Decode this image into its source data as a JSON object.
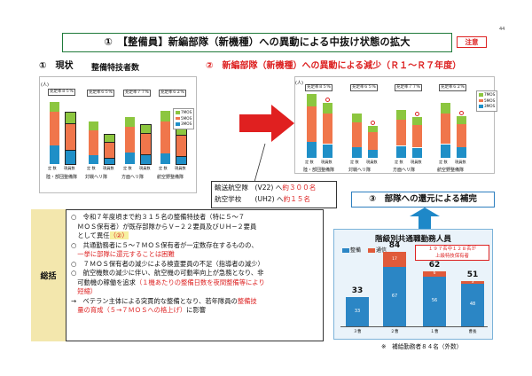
{
  "page_number": "44",
  "title": "①　【整備員】新編部隊（新機種）への異動による中抜け状態の拡大",
  "caution": "注意",
  "section1": {
    "title": "①　現状",
    "subtitle": "整備特技者数",
    "y_unit": "(人)",
    "charts": [
      {
        "name": "陸・部団整備隊",
        "rate": "充足率８５%"
      },
      {
        "name": "対戦ヘリ隊",
        "rate": "充足率６５%"
      },
      {
        "name": "方面ヘリ隊",
        "rate": "充足率７７%"
      },
      {
        "name": "航空野整備隊",
        "rate": "充足率６２%"
      }
    ],
    "bar_labels": [
      "定 数",
      "現員数"
    ],
    "legend": [
      "7MOS",
      "5MOS",
      "3MOS"
    ]
  },
  "section2": {
    "title": "②　新編部隊（新機種）への異動による減少（Ｒ１〜Ｒ７年度）",
    "y_unit": "(人)",
    "charts": [
      {
        "name": "陸・部団整備隊",
        "rate": "充足率８５%"
      },
      {
        "name": "対戦ヘリ隊",
        "rate": "充足率６５%"
      },
      {
        "name": "方面ヘリ隊",
        "rate": "充足率７７%"
      },
      {
        "name": "航空野整備隊",
        "rate": "充足率６２%"
      }
    ],
    "legend": [
      "7MOS",
      "5MOS",
      "3MOS"
    ]
  },
  "transport": {
    "line1_prefix": "輸送航空隊　(V22) へ",
    "line1_value": "約３００名",
    "line2_prefix": "航空学校　　(UH2) へ",
    "line2_value": "約１５名"
  },
  "section3": {
    "title": "③　部隊への還元による補完"
  },
  "summary": {
    "label": "総括",
    "lines": [
      {
        "text": "○　令和７年度頃まで約３１５名の整備特技者（特に５〜７",
        "style": ""
      },
      {
        "text": "　ＭＯＳ保有者）が既存部隊からＶ−２２要員及びＵＨ−２要員",
        "style": ""
      },
      {
        "text": "　として異任",
        "style": "",
        "suffix": "（②）"
      },
      {
        "text": "○　共通勤務者に５〜７ＭＯＳ保有者が一定数存在するものの、",
        "style": ""
      },
      {
        "text": "　一挙に部隊に還元することは困難",
        "style": "red"
      },
      {
        "text": "○　７ＭＯＳ保有者の減少による検査要員の不足（指導者の減少）",
        "style": ""
      },
      {
        "text": "○　航空機数の減少に伴い、航空機の可動率向上が急務となり、非",
        "style": ""
      },
      {
        "text": "　可動機の稼働を追求",
        "style": "",
        "suffix": "（１機あたりの整備日数を夜間整備等により"
      },
      {
        "text": "　短縮）",
        "style": "red"
      },
      {
        "text": "→　ベテラン主体による突貫的な整備となり、若年隊員の",
        "style": "",
        "suffix": "整備技"
      },
      {
        "text": "　量の育成（５→７ＭＯＳへの格上げ）",
        "style": "red",
        "suffix2": "に影響"
      }
    ]
  },
  "right_chart": {
    "heading": "階級別共通職勤務人員",
    "legend": [
      "整備",
      "通信"
    ],
    "note": "１９７名中１２８名が\n上級特技保有者",
    "categories": [
      "３曹",
      "２曹",
      "１曹",
      "曹長"
    ],
    "totals": [
      "33",
      "84",
      "62",
      "51"
    ],
    "seiby": [
      33,
      67,
      56,
      48
    ],
    "tsushin": [
      0,
      17,
      6,
      3
    ],
    "seiby_labels": [
      "33",
      "67",
      "56",
      "48"
    ],
    "tsushin_labels": [
      "",
      "17",
      "6",
      "3"
    ]
  },
  "bottom_note": "※　補給勤務者８４名（外数）",
  "colors": {
    "green": "#1f7a3a",
    "red": "#d22222",
    "bar_green": "#8cc63f",
    "bar_orange": "#f0764b",
    "bar_blue": "#1f8fc7",
    "right_blue": "#2b86c5",
    "right_red": "#e05a3a"
  }
}
